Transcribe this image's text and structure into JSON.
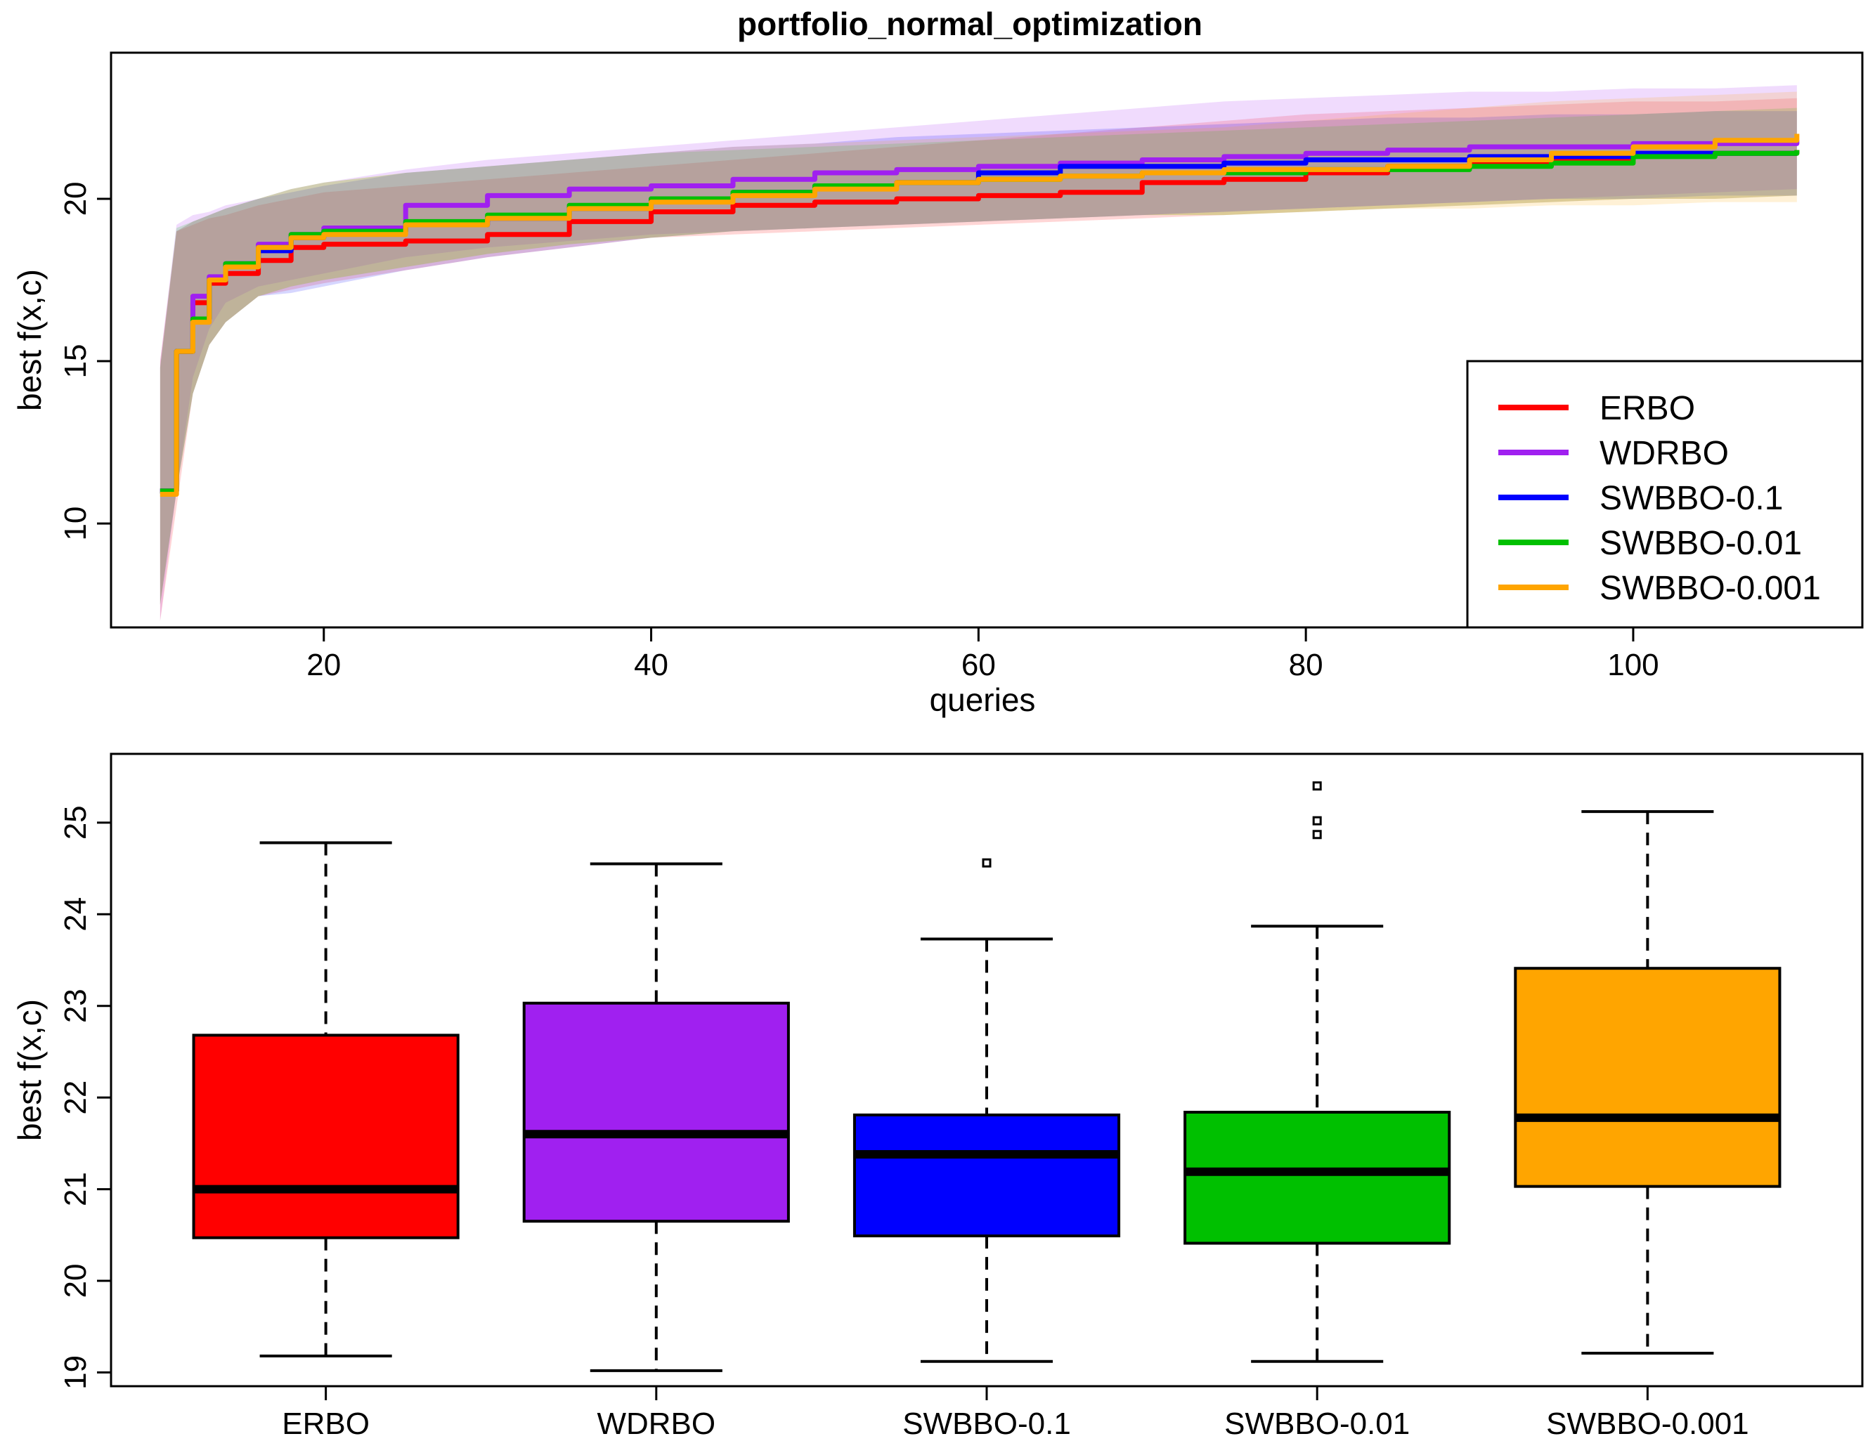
{
  "chart_data": [
    {
      "type": "line",
      "title": "portfolio_normal_optimization",
      "xlabel": "queries",
      "ylabel": "best f(x,c)",
      "xlim": [
        7,
        114
      ],
      "ylim": [
        6.8,
        24.5
      ],
      "xticks": [
        20,
        40,
        60,
        80,
        100
      ],
      "yticks": [
        10,
        15,
        20
      ],
      "legend_position": "bottom-right",
      "series": [
        {
          "name": "ERBO",
          "color": "#ff0000",
          "x": [
            10,
            11,
            12,
            13,
            14,
            16,
            18,
            20,
            25,
            30,
            35,
            40,
            45,
            50,
            55,
            60,
            65,
            70,
            75,
            80,
            85,
            90,
            95,
            100,
            105,
            110
          ],
          "y": [
            11.0,
            15.3,
            16.8,
            17.4,
            17.7,
            18.1,
            18.5,
            18.6,
            18.7,
            18.9,
            19.3,
            19.6,
            19.8,
            19.9,
            20.0,
            20.1,
            20.2,
            20.5,
            20.6,
            20.8,
            21.0,
            21.1,
            21.2,
            21.4,
            21.4,
            21.5
          ],
          "band_low": [
            7.0,
            10.5,
            14.0,
            15.5,
            16.2,
            17.0,
            17.2,
            17.4,
            17.8,
            18.2,
            18.5,
            18.8,
            18.9,
            19.0,
            19.1,
            19.2,
            19.3,
            19.4,
            19.5,
            19.6,
            19.7,
            19.8,
            19.9,
            20.0,
            20.0,
            20.1
          ],
          "band_high": [
            15.0,
            19.0,
            19.2,
            19.4,
            19.5,
            19.8,
            20.0,
            20.2,
            20.4,
            20.6,
            20.8,
            21.0,
            21.2,
            21.4,
            21.6,
            21.8,
            22.0,
            22.2,
            22.4,
            22.6,
            22.7,
            22.8,
            22.9,
            23.0,
            23.0,
            23.1
          ]
        },
        {
          "name": "WDRBO",
          "color": "#a020f0",
          "x": [
            10,
            11,
            12,
            13,
            14,
            16,
            18,
            20,
            25,
            30,
            35,
            40,
            45,
            50,
            55,
            60,
            65,
            70,
            75,
            80,
            85,
            90,
            95,
            100,
            105,
            110
          ],
          "y": [
            11.0,
            15.3,
            17.0,
            17.6,
            18.0,
            18.6,
            18.9,
            19.1,
            19.8,
            20.1,
            20.3,
            20.4,
            20.6,
            20.8,
            20.9,
            21.0,
            21.1,
            21.2,
            21.3,
            21.4,
            21.5,
            21.6,
            21.6,
            21.7,
            21.7,
            21.8
          ],
          "band_low": [
            7.0,
            11.0,
            14.5,
            16.0,
            16.8,
            17.3,
            17.5,
            17.7,
            18.2,
            18.5,
            18.7,
            18.9,
            19.0,
            19.1,
            19.2,
            19.3,
            19.4,
            19.5,
            19.6,
            19.7,
            19.8,
            19.9,
            20.0,
            20.1,
            20.2,
            20.3
          ],
          "band_high": [
            15.0,
            19.2,
            19.5,
            19.6,
            19.8,
            20.0,
            20.3,
            20.5,
            20.9,
            21.2,
            21.4,
            21.6,
            21.8,
            22.0,
            22.2,
            22.4,
            22.6,
            22.8,
            23.0,
            23.1,
            23.2,
            23.3,
            23.3,
            23.4,
            23.4,
            23.5
          ]
        },
        {
          "name": "SWBBO-0.1",
          "color": "#0000ff",
          "x": [
            10,
            11,
            12,
            13,
            14,
            16,
            18,
            20,
            25,
            30,
            35,
            40,
            45,
            50,
            55,
            60,
            65,
            70,
            75,
            80,
            85,
            90,
            95,
            100,
            105,
            110
          ],
          "y": [
            11.0,
            15.3,
            16.3,
            17.5,
            18.0,
            18.4,
            18.8,
            19.0,
            19.2,
            19.4,
            19.7,
            20.0,
            20.2,
            20.4,
            20.5,
            20.8,
            21.0,
            21.0,
            21.1,
            21.2,
            21.2,
            21.3,
            21.3,
            21.4,
            21.4,
            21.4
          ],
          "band_low": [
            7.5,
            11.0,
            14.0,
            15.5,
            16.2,
            17.0,
            17.1,
            17.3,
            17.8,
            18.2,
            18.5,
            18.8,
            19.0,
            19.1,
            19.2,
            19.3,
            19.4,
            19.5,
            19.6,
            19.7,
            19.8,
            19.9,
            20.0,
            20.0,
            20.1,
            20.1
          ],
          "band_high": [
            14.8,
            19.0,
            19.3,
            19.5,
            19.7,
            20.0,
            20.2,
            20.4,
            20.8,
            21.0,
            21.2,
            21.4,
            21.6,
            21.7,
            21.9,
            22.0,
            22.1,
            22.2,
            22.3,
            22.4,
            22.5,
            22.5,
            22.6,
            22.6,
            22.7,
            22.7
          ]
        },
        {
          "name": "SWBBO-0.01",
          "color": "#00c000",
          "x": [
            10,
            11,
            12,
            13,
            14,
            16,
            18,
            20,
            25,
            30,
            35,
            40,
            45,
            50,
            55,
            60,
            65,
            70,
            75,
            80,
            85,
            90,
            95,
            100,
            105,
            110
          ],
          "y": [
            11.0,
            15.3,
            16.3,
            17.5,
            18.0,
            18.5,
            18.9,
            19.0,
            19.3,
            19.5,
            19.8,
            20.0,
            20.2,
            20.4,
            20.5,
            20.6,
            20.7,
            20.8,
            20.8,
            20.9,
            20.9,
            21.0,
            21.1,
            21.3,
            21.4,
            21.5
          ],
          "band_low": [
            7.5,
            11.0,
            14.0,
            15.5,
            16.2,
            17.0,
            17.3,
            17.5,
            17.9,
            18.3,
            18.6,
            18.8,
            19.0,
            19.1,
            19.2,
            19.3,
            19.4,
            19.5,
            19.5,
            19.6,
            19.7,
            19.8,
            19.9,
            20.0,
            20.0,
            20.1
          ],
          "band_high": [
            14.8,
            19.1,
            19.3,
            19.5,
            19.7,
            20.0,
            20.3,
            20.5,
            20.8,
            21.0,
            21.2,
            21.4,
            21.5,
            21.6,
            21.7,
            21.8,
            21.9,
            22.0,
            22.1,
            22.2,
            22.3,
            22.4,
            22.5,
            22.6,
            22.7,
            22.8
          ]
        },
        {
          "name": "SWBBO-0.001",
          "color": "#ffa500",
          "x": [
            10,
            11,
            12,
            13,
            14,
            16,
            18,
            20,
            25,
            30,
            35,
            40,
            45,
            50,
            55,
            60,
            65,
            70,
            75,
            80,
            85,
            90,
            95,
            100,
            105,
            110
          ],
          "y": [
            10.9,
            15.3,
            16.2,
            17.5,
            17.9,
            18.5,
            18.8,
            18.9,
            19.2,
            19.4,
            19.7,
            19.9,
            20.1,
            20.3,
            20.5,
            20.6,
            20.7,
            20.8,
            20.9,
            20.9,
            21.0,
            21.2,
            21.4,
            21.6,
            21.8,
            22.0
          ],
          "band_low": [
            7.5,
            11.0,
            14.0,
            15.5,
            16.2,
            17.0,
            17.3,
            17.5,
            17.9,
            18.3,
            18.6,
            18.8,
            19.0,
            19.1,
            19.2,
            19.3,
            19.4,
            19.5,
            19.5,
            19.6,
            19.7,
            19.7,
            19.8,
            19.8,
            19.9,
            19.9
          ],
          "band_high": [
            14.8,
            19.0,
            19.3,
            19.5,
            19.7,
            20.0,
            20.3,
            20.5,
            20.8,
            21.0,
            21.2,
            21.4,
            21.6,
            21.7,
            21.8,
            21.9,
            22.0,
            22.1,
            22.2,
            22.4,
            22.6,
            22.8,
            23.0,
            23.1,
            23.2,
            23.3
          ]
        }
      ]
    },
    {
      "type": "box",
      "title": "",
      "xlabel": "",
      "ylabel": "best f(x,c)",
      "ylim": [
        18.85,
        25.75
      ],
      "yticks": [
        19,
        20,
        21,
        22,
        23,
        24,
        25
      ],
      "categories": [
        "ERBO",
        "WDRBO",
        "SWBBO-0.1",
        "SWBBO-0.01",
        "SWBBO-0.001"
      ],
      "colors": [
        "#ff0000",
        "#a020f0",
        "#0000ff",
        "#00c000",
        "#ffa500"
      ],
      "boxes": [
        {
          "whisker_low": 19.18,
          "q1": 20.47,
          "median": 21.0,
          "q3": 22.68,
          "whisker_high": 24.78,
          "outliers": []
        },
        {
          "whisker_low": 19.02,
          "q1": 20.65,
          "median": 21.6,
          "q3": 23.03,
          "whisker_high": 24.55,
          "outliers": []
        },
        {
          "whisker_low": 19.12,
          "q1": 20.49,
          "median": 21.38,
          "q3": 21.81,
          "whisker_high": 23.73,
          "outliers": [
            24.56
          ]
        },
        {
          "whisker_low": 19.12,
          "q1": 20.41,
          "median": 21.19,
          "q3": 21.84,
          "whisker_high": 23.87,
          "outliers": [
            24.87,
            25.02,
            25.4
          ]
        },
        {
          "whisker_low": 19.21,
          "q1": 21.03,
          "median": 21.78,
          "q3": 23.41,
          "whisker_high": 25.12,
          "outliers": []
        }
      ]
    }
  ]
}
